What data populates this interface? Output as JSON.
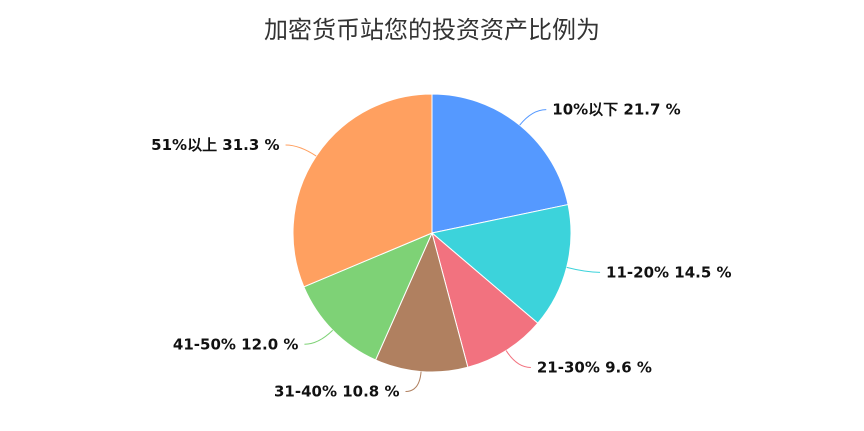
{
  "chart_data": {
    "type": "pie",
    "title": "加密货币站您的投资资产比例为",
    "slices": [
      {
        "label": "10%以下",
        "value": 21.7,
        "display": "10%以下 21.7 %",
        "color": "#5599ff"
      },
      {
        "label": "11-20%",
        "value": 14.5,
        "display": "11-20% 14.5 %",
        "color": "#3cd3db"
      },
      {
        "label": "21-30%",
        "value": 9.6,
        "display": "21-30% 9.6 %",
        "color": "#f2727f"
      },
      {
        "label": "31-40%",
        "value": 10.8,
        "display": "31-40% 10.8 %",
        "color": "#b08060"
      },
      {
        "label": "41-50%",
        "value": 12.0,
        "display": "41-50% 12.0 %",
        "color": "#7ed276"
      },
      {
        "label": "51%以上",
        "value": 31.3,
        "display": "51%以上 31.3 %",
        "color": "#ffa060"
      }
    ]
  }
}
